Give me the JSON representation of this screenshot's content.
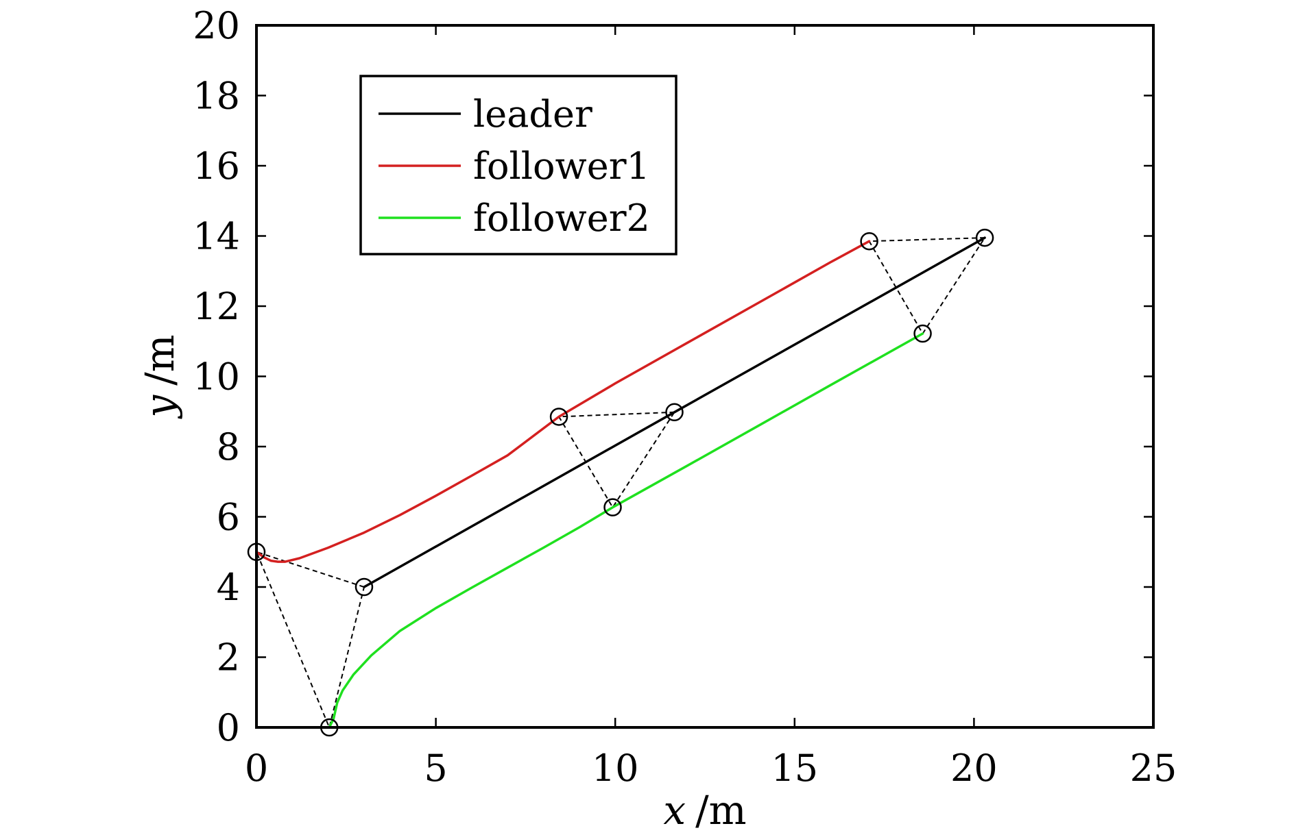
{
  "chart_data": {
    "type": "line",
    "xlabel_var": "x",
    "xlabel_unit": "/m",
    "ylabel_var": "y",
    "ylabel_unit": "/m",
    "xlim": [
      0,
      25
    ],
    "ylim": [
      0,
      20
    ],
    "xticks": [
      0,
      5,
      10,
      15,
      20,
      25
    ],
    "yticks": [
      0,
      2,
      4,
      6,
      8,
      10,
      12,
      14,
      16,
      18,
      20
    ],
    "grid": false,
    "legend_position": "top-left",
    "series": [
      {
        "name": "leader",
        "color": "#000000",
        "points": [
          [
            3.0,
            4.0
          ],
          [
            11.65,
            8.98
          ],
          [
            20.3,
            13.95
          ]
        ]
      },
      {
        "name": "follower1",
        "color": "#d42020",
        "points": [
          [
            0.0,
            5.0
          ],
          [
            0.2,
            4.85
          ],
          [
            0.4,
            4.75
          ],
          [
            0.6,
            4.72
          ],
          [
            0.8,
            4.72
          ],
          [
            1.2,
            4.82
          ],
          [
            2.0,
            5.12
          ],
          [
            3.0,
            5.55
          ],
          [
            4.0,
            6.05
          ],
          [
            5.0,
            6.6
          ],
          [
            6.0,
            7.17
          ],
          [
            7.0,
            7.75
          ],
          [
            8.43,
            8.85
          ],
          [
            10.0,
            9.8
          ],
          [
            12.0,
            10.95
          ],
          [
            14.0,
            12.1
          ],
          [
            16.0,
            13.25
          ],
          [
            17.08,
            13.85
          ]
        ]
      },
      {
        "name": "follower2",
        "color": "#1fe01f",
        "points": [
          [
            2.03,
            0.0
          ],
          [
            2.15,
            0.25
          ],
          [
            2.25,
            0.7
          ],
          [
            2.4,
            1.05
          ],
          [
            2.7,
            1.5
          ],
          [
            3.2,
            2.05
          ],
          [
            4.0,
            2.75
          ],
          [
            5.0,
            3.4
          ],
          [
            6.0,
            3.98
          ],
          [
            7.0,
            4.55
          ],
          [
            8.0,
            5.12
          ],
          [
            9.0,
            5.7
          ],
          [
            9.93,
            6.27
          ],
          [
            12.0,
            7.45
          ],
          [
            14.0,
            8.6
          ],
          [
            16.0,
            9.75
          ],
          [
            18.57,
            11.22
          ]
        ]
      }
    ],
    "formations": [
      {
        "points": [
          [
            3.0,
            4.0
          ],
          [
            0.0,
            5.0
          ],
          [
            2.03,
            0.0
          ]
        ]
      },
      {
        "points": [
          [
            11.65,
            8.98
          ],
          [
            8.43,
            8.85
          ],
          [
            9.93,
            6.27
          ]
        ]
      },
      {
        "points": [
          [
            20.3,
            13.95
          ],
          [
            17.08,
            13.85
          ],
          [
            18.57,
            11.22
          ]
        ]
      }
    ]
  }
}
